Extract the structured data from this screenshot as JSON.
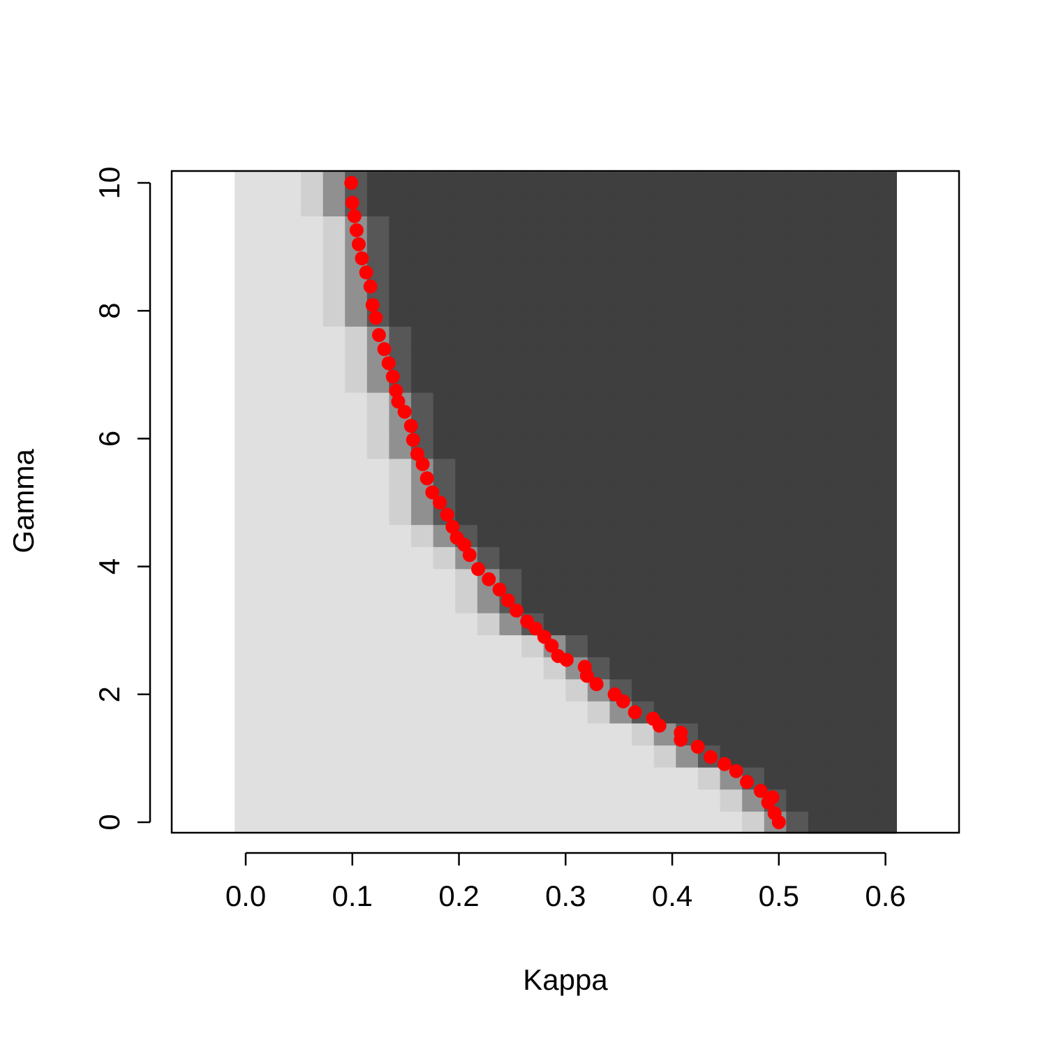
{
  "chart_data": {
    "type": "heatmap",
    "xlabel": "Kappa",
    "ylabel": "Gamma",
    "xlim": [
      -0.0694,
      0.669
    ],
    "ylim": [
      -0.164,
      10.186
    ],
    "xticks": [
      {
        "value": 0,
        "label": "0.0"
      },
      0.1,
      0.2,
      0.3,
      0.4,
      0.5,
      0.6
    ],
    "yticks": [
      0,
      2,
      4,
      6,
      8,
      10
    ],
    "colors": [
      "#e0e0e0",
      "#3f3f3f"
    ],
    "x": [
      0,
      0.0207,
      0.0414,
      0.0621,
      0.0828,
      0.1034,
      0.1241,
      0.1448,
      0.1655,
      0.1862,
      0.2069,
      0.2276,
      0.2483,
      0.269,
      0.2897,
      0.3103,
      0.331,
      0.3517,
      0.3724,
      0.3931,
      0.4138,
      0.4345,
      0.4552,
      0.4759,
      0.4966,
      0.5172,
      0.5379,
      0.5586,
      0.5793,
      0.6
    ],
    "y": [
      0,
      0.345,
      0.69,
      1.034,
      1.379,
      1.724,
      2.069,
      2.414,
      2.759,
      3.103,
      3.448,
      3.793,
      4.138,
      4.483,
      4.828,
      5.172,
      5.517,
      5.862,
      6.207,
      6.552,
      6.897,
      7.241,
      7.586,
      7.931,
      8.276,
      8.621,
      8.966,
      9.31,
      9.655,
      10
    ],
    "z": [
      [
        0,
        0,
        0,
        0,
        0,
        0,
        0,
        0,
        0,
        0,
        0,
        0,
        0,
        0,
        0,
        0,
        0,
        0,
        0,
        0,
        0,
        0,
        0,
        0.1,
        0.5,
        0.85,
        1,
        1,
        1,
        1
      ],
      [
        0,
        0,
        0,
        0,
        0,
        0,
        0,
        0,
        0,
        0,
        0,
        0,
        0,
        0,
        0,
        0,
        0,
        0,
        0,
        0,
        0,
        0,
        0.1,
        0.5,
        0.85,
        1,
        1,
        1,
        1,
        1
      ],
      [
        0,
        0,
        0,
        0,
        0,
        0,
        0,
        0,
        0,
        0,
        0,
        0,
        0,
        0,
        0,
        0,
        0,
        0,
        0,
        0,
        0,
        0.1,
        0.5,
        0.85,
        1,
        1,
        1,
        1,
        1,
        1
      ],
      [
        0,
        0,
        0,
        0,
        0,
        0,
        0,
        0,
        0,
        0,
        0,
        0,
        0,
        0,
        0,
        0,
        0,
        0,
        0,
        0.1,
        0.5,
        0.85,
        1,
        1,
        1,
        1,
        1,
        1,
        1,
        1
      ],
      [
        0,
        0,
        0,
        0,
        0,
        0,
        0,
        0,
        0,
        0,
        0,
        0,
        0,
        0,
        0,
        0,
        0,
        0,
        0.1,
        0.5,
        0.85,
        1,
        1,
        1,
        1,
        1,
        1,
        1,
        1,
        1
      ],
      [
        0,
        0,
        0,
        0,
        0,
        0,
        0,
        0,
        0,
        0,
        0,
        0,
        0,
        0,
        0,
        0,
        0.1,
        0.5,
        0.85,
        1,
        1,
        1,
        1,
        1,
        1,
        1,
        1,
        1,
        1,
        1
      ],
      [
        0,
        0,
        0,
        0,
        0,
        0,
        0,
        0,
        0,
        0,
        0,
        0,
        0,
        0,
        0,
        0.1,
        0.5,
        0.85,
        1,
        1,
        1,
        1,
        1,
        1,
        1,
        1,
        1,
        1,
        1,
        1
      ],
      [
        0,
        0,
        0,
        0,
        0,
        0,
        0,
        0,
        0,
        0,
        0,
        0,
        0,
        0,
        0.1,
        0.5,
        0.85,
        1,
        1,
        1,
        1,
        1,
        1,
        1,
        1,
        1,
        1,
        1,
        1,
        1
      ],
      [
        0,
        0,
        0,
        0,
        0,
        0,
        0,
        0,
        0,
        0,
        0,
        0,
        0,
        0.1,
        0.5,
        0.85,
        1,
        1,
        1,
        1,
        1,
        1,
        1,
        1,
        1,
        1,
        1,
        1,
        1,
        1
      ],
      [
        0,
        0,
        0,
        0,
        0,
        0,
        0,
        0,
        0,
        0,
        0,
        0.1,
        0.5,
        0.85,
        1,
        1,
        1,
        1,
        1,
        1,
        1,
        1,
        1,
        1,
        1,
        1,
        1,
        1,
        1,
        1
      ],
      [
        0,
        0,
        0,
        0,
        0,
        0,
        0,
        0,
        0,
        0,
        0.1,
        0.5,
        0.85,
        1,
        1,
        1,
        1,
        1,
        1,
        1,
        1,
        1,
        1,
        1,
        1,
        1,
        1,
        1,
        1,
        1
      ],
      [
        0,
        0,
        0,
        0,
        0,
        0,
        0,
        0,
        0,
        0,
        0.1,
        0.5,
        0.85,
        1,
        1,
        1,
        1,
        1,
        1,
        1,
        1,
        1,
        1,
        1,
        1,
        1,
        1,
        1,
        1,
        1
      ],
      [
        0,
        0,
        0,
        0,
        0,
        0,
        0,
        0,
        0,
        0.1,
        0.5,
        0.85,
        1,
        1,
        1,
        1,
        1,
        1,
        1,
        1,
        1,
        1,
        1,
        1,
        1,
        1,
        1,
        1,
        1,
        1
      ],
      [
        0,
        0,
        0,
        0,
        0,
        0,
        0,
        0,
        0.1,
        0.5,
        0.85,
        1,
        1,
        1,
        1,
        1,
        1,
        1,
        1,
        1,
        1,
        1,
        1,
        1,
        1,
        1,
        1,
        1,
        1,
        1
      ],
      [
        0,
        0,
        0,
        0,
        0,
        0,
        0,
        0.1,
        0.5,
        0.85,
        1,
        1,
        1,
        1,
        1,
        1,
        1,
        1,
        1,
        1,
        1,
        1,
        1,
        1,
        1,
        1,
        1,
        1,
        1,
        1
      ],
      [
        0,
        0,
        0,
        0,
        0,
        0,
        0,
        0.1,
        0.5,
        0.85,
        1,
        1,
        1,
        1,
        1,
        1,
        1,
        1,
        1,
        1,
        1,
        1,
        1,
        1,
        1,
        1,
        1,
        1,
        1,
        1
      ],
      [
        0,
        0,
        0,
        0,
        0,
        0,
        0,
        0.1,
        0.5,
        0.85,
        1,
        1,
        1,
        1,
        1,
        1,
        1,
        1,
        1,
        1,
        1,
        1,
        1,
        1,
        1,
        1,
        1,
        1,
        1,
        1
      ],
      [
        0,
        0,
        0,
        0,
        0,
        0,
        0.1,
        0.5,
        0.85,
        1,
        1,
        1,
        1,
        1,
        1,
        1,
        1,
        1,
        1,
        1,
        1,
        1,
        1,
        1,
        1,
        1,
        1,
        1,
        1,
        1
      ],
      [
        0,
        0,
        0,
        0,
        0,
        0,
        0.1,
        0.5,
        0.85,
        1,
        1,
        1,
        1,
        1,
        1,
        1,
        1,
        1,
        1,
        1,
        1,
        1,
        1,
        1,
        1,
        1,
        1,
        1,
        1,
        1
      ],
      [
        0,
        0,
        0,
        0,
        0,
        0,
        0.1,
        0.5,
        0.85,
        1,
        1,
        1,
        1,
        1,
        1,
        1,
        1,
        1,
        1,
        1,
        1,
        1,
        1,
        1,
        1,
        1,
        1,
        1,
        1,
        1
      ],
      [
        0,
        0,
        0,
        0,
        0,
        0.1,
        0.5,
        0.85,
        1,
        1,
        1,
        1,
        1,
        1,
        1,
        1,
        1,
        1,
        1,
        1,
        1,
        1,
        1,
        1,
        1,
        1,
        1,
        1,
        1,
        1
      ],
      [
        0,
        0,
        0,
        0,
        0,
        0.1,
        0.5,
        0.85,
        1,
        1,
        1,
        1,
        1,
        1,
        1,
        1,
        1,
        1,
        1,
        1,
        1,
        1,
        1,
        1,
        1,
        1,
        1,
        1,
        1,
        1
      ],
      [
        0,
        0,
        0,
        0,
        0,
        0.1,
        0.5,
        0.85,
        1,
        1,
        1,
        1,
        1,
        1,
        1,
        1,
        1,
        1,
        1,
        1,
        1,
        1,
        1,
        1,
        1,
        1,
        1,
        1,
        1,
        1
      ],
      [
        0,
        0,
        0,
        0,
        0.1,
        0.5,
        0.85,
        1,
        1,
        1,
        1,
        1,
        1,
        1,
        1,
        1,
        1,
        1,
        1,
        1,
        1,
        1,
        1,
        1,
        1,
        1,
        1,
        1,
        1,
        1
      ],
      [
        0,
        0,
        0,
        0,
        0.1,
        0.5,
        0.85,
        1,
        1,
        1,
        1,
        1,
        1,
        1,
        1,
        1,
        1,
        1,
        1,
        1,
        1,
        1,
        1,
        1,
        1,
        1,
        1,
        1,
        1,
        1
      ],
      [
        0,
        0,
        0,
        0,
        0.1,
        0.5,
        0.85,
        1,
        1,
        1,
        1,
        1,
        1,
        1,
        1,
        1,
        1,
        1,
        1,
        1,
        1,
        1,
        1,
        1,
        1,
        1,
        1,
        1,
        1,
        1
      ],
      [
        0,
        0,
        0,
        0,
        0.1,
        0.5,
        0.85,
        1,
        1,
        1,
        1,
        1,
        1,
        1,
        1,
        1,
        1,
        1,
        1,
        1,
        1,
        1,
        1,
        1,
        1,
        1,
        1,
        1,
        1,
        1
      ],
      [
        0,
        0,
        0,
        0,
        0.1,
        0.5,
        0.85,
        1,
        1,
        1,
        1,
        1,
        1,
        1,
        1,
        1,
        1,
        1,
        1,
        1,
        1,
        1,
        1,
        1,
        1,
        1,
        1,
        1,
        1,
        1
      ],
      [
        0,
        0,
        0,
        0.1,
        0.5,
        0.85,
        1,
        1,
        1,
        1,
        1,
        1,
        1,
        1,
        1,
        1,
        1,
        1,
        1,
        1,
        1,
        1,
        1,
        1,
        1,
        1,
        1,
        1,
        1,
        1
      ],
      [
        0,
        0,
        0,
        0.1,
        0.5,
        0.85,
        1,
        1,
        1,
        1,
        1,
        1,
        1,
        1,
        1,
        1,
        1,
        1,
        1,
        1,
        1,
        1,
        1,
        1,
        1,
        1,
        1,
        1,
        1,
        1
      ]
    ],
    "points": {
      "color": "#ff0000",
      "x": [
        0.099,
        0.1,
        0.102,
        0.104,
        0.106,
        0.109,
        0.113,
        0.117,
        0.119,
        0.122,
        0.125,
        0.13,
        0.134,
        0.138,
        0.141,
        0.143,
        0.149,
        0.155,
        0.157,
        0.161,
        0.166,
        0.17,
        0.175,
        0.182,
        0.189,
        0.194,
        0.198,
        0.205,
        0.21,
        0.218,
        0.228,
        0.238,
        0.246,
        0.254,
        0.264,
        0.272,
        0.28,
        0.287,
        0.293,
        0.301,
        0.318,
        0.32,
        0.329,
        0.346,
        0.354,
        0.365,
        0.382,
        0.388,
        0.408,
        0.408,
        0.424,
        0.436,
        0.449,
        0.46,
        0.47,
        0.483,
        0.494,
        0.49,
        0.496,
        0.5
      ],
      "y": [
        10,
        9.69,
        9.48,
        9.26,
        9.04,
        8.82,
        8.6,
        8.38,
        8.09,
        7.89,
        7.62,
        7.4,
        7.18,
        6.97,
        6.75,
        6.58,
        6.42,
        6.2,
        5.98,
        5.76,
        5.6,
        5.38,
        5.16,
        5,
        4.81,
        4.62,
        4.45,
        4.34,
        4.18,
        3.96,
        3.8,
        3.64,
        3.47,
        3.31,
        3.14,
        3.03,
        2.9,
        2.76,
        2.6,
        2.54,
        2.43,
        2.29,
        2.16,
        2,
        1.89,
        1.72,
        1.62,
        1.51,
        1.4,
        1.29,
        1.18,
        1.02,
        0.91,
        0.8,
        0.63,
        0.49,
        0.39,
        0.31,
        0.14,
        0
      ]
    }
  }
}
